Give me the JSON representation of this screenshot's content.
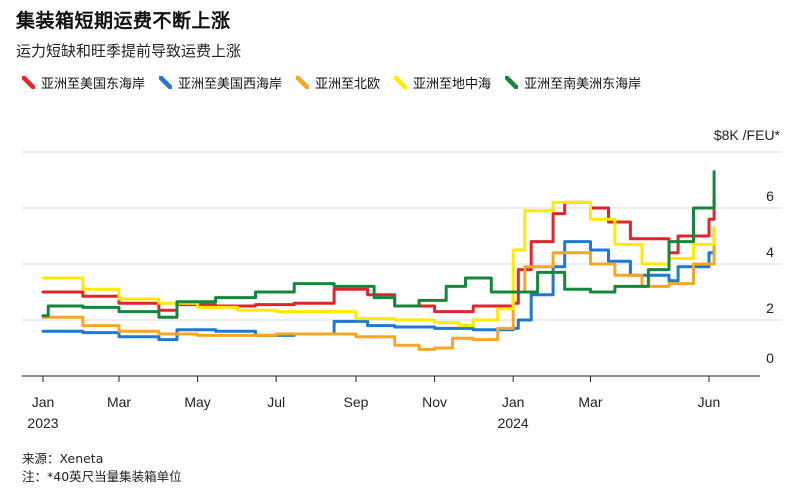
{
  "title": "集装箱短期运费不断上涨",
  "subtitle": "运力短缺和旺季提前导致运费上涨",
  "source": "来源：Xeneta",
  "note": "注：*40英尺当量集装箱单位",
  "chart_data": {
    "type": "line",
    "unit_label": "$8K /FEU*",
    "ylim": [
      0,
      8
    ],
    "y_ticks": [
      0,
      2,
      4,
      6
    ],
    "grid": true,
    "x_start": "2023-01-01",
    "x_end": "2024-06-15",
    "x_ticks": [
      {
        "date": "2023-01-01",
        "label": "Jan",
        "year": "2023"
      },
      {
        "date": "2023-03-01",
        "label": "Mar",
        "year": ""
      },
      {
        "date": "2023-05-01",
        "label": "May",
        "year": ""
      },
      {
        "date": "2023-07-01",
        "label": "Jul",
        "year": ""
      },
      {
        "date": "2023-09-01",
        "label": "Sep",
        "year": ""
      },
      {
        "date": "2023-11-01",
        "label": "Nov",
        "year": ""
      },
      {
        "date": "2024-01-01",
        "label": "Jan",
        "year": "2024"
      },
      {
        "date": "2024-03-01",
        "label": "Mar",
        "year": ""
      },
      {
        "date": "2024-06-01",
        "label": "Jun",
        "year": ""
      }
    ],
    "series": [
      {
        "name": "亚洲至美国东海岸",
        "color": "#e0262b",
        "points": [
          [
            "2023-01-01",
            3.0
          ],
          [
            "2023-02-01",
            2.85
          ],
          [
            "2023-03-01",
            2.6
          ],
          [
            "2023-04-01",
            2.35
          ],
          [
            "2023-04-15",
            2.55
          ],
          [
            "2023-05-15",
            2.5
          ],
          [
            "2023-06-15",
            2.55
          ],
          [
            "2023-07-15",
            2.6
          ],
          [
            "2023-08-15",
            3.1
          ],
          [
            "2023-09-10",
            2.9
          ],
          [
            "2023-10-01",
            2.5
          ],
          [
            "2023-11-01",
            2.3
          ],
          [
            "2023-12-01",
            2.5
          ],
          [
            "2024-01-01",
            2.6
          ],
          [
            "2024-01-05",
            3.8
          ],
          [
            "2024-01-15",
            4.8
          ],
          [
            "2024-02-01",
            5.8
          ],
          [
            "2024-02-10",
            6.2
          ],
          [
            "2024-03-01",
            6.0
          ],
          [
            "2024-03-15",
            5.5
          ],
          [
            "2024-04-01",
            4.9
          ],
          [
            "2024-05-01",
            4.4
          ],
          [
            "2024-05-08",
            5.0
          ],
          [
            "2024-06-01",
            5.6
          ],
          [
            "2024-06-05",
            6.3
          ]
        ]
      },
      {
        "name": "亚洲至美国西海岸",
        "color": "#1f78d1",
        "points": [
          [
            "2023-01-01",
            1.6
          ],
          [
            "2023-02-01",
            1.55
          ],
          [
            "2023-03-01",
            1.4
          ],
          [
            "2023-04-01",
            1.3
          ],
          [
            "2023-04-15",
            1.65
          ],
          [
            "2023-05-15",
            1.6
          ],
          [
            "2023-06-15",
            1.45
          ],
          [
            "2023-07-15",
            1.5
          ],
          [
            "2023-08-15",
            1.95
          ],
          [
            "2023-09-10",
            1.8
          ],
          [
            "2023-10-01",
            1.75
          ],
          [
            "2023-11-01",
            1.7
          ],
          [
            "2023-12-01",
            1.65
          ],
          [
            "2024-01-01",
            1.7
          ],
          [
            "2024-01-05",
            2.0
          ],
          [
            "2024-01-15",
            2.9
          ],
          [
            "2024-02-01",
            3.9
          ],
          [
            "2024-02-10",
            4.8
          ],
          [
            "2024-03-01",
            4.5
          ],
          [
            "2024-03-15",
            4.1
          ],
          [
            "2024-04-01",
            3.6
          ],
          [
            "2024-05-01",
            3.4
          ],
          [
            "2024-05-08",
            3.9
          ],
          [
            "2024-06-01",
            4.4
          ],
          [
            "2024-06-05",
            5.2
          ]
        ]
      },
      {
        "name": "亚洲至北欧",
        "color": "#f5a623",
        "points": [
          [
            "2023-01-01",
            2.1
          ],
          [
            "2023-02-01",
            1.8
          ],
          [
            "2023-03-01",
            1.6
          ],
          [
            "2023-04-01",
            1.5
          ],
          [
            "2023-05-01",
            1.45
          ],
          [
            "2023-06-01",
            1.45
          ],
          [
            "2023-07-01",
            1.5
          ],
          [
            "2023-08-01",
            1.5
          ],
          [
            "2023-09-01",
            1.4
          ],
          [
            "2023-10-01",
            1.1
          ],
          [
            "2023-10-20",
            0.95
          ],
          [
            "2023-11-01",
            1.0
          ],
          [
            "2023-11-15",
            1.35
          ],
          [
            "2023-12-01",
            1.3
          ],
          [
            "2023-12-20",
            1.7
          ],
          [
            "2024-01-01",
            3.0
          ],
          [
            "2024-01-10",
            3.9
          ],
          [
            "2024-02-01",
            4.4
          ],
          [
            "2024-03-01",
            4.0
          ],
          [
            "2024-03-20",
            3.6
          ],
          [
            "2024-04-10",
            3.2
          ],
          [
            "2024-05-01",
            3.3
          ],
          [
            "2024-05-20",
            4.0
          ],
          [
            "2024-06-05",
            4.6
          ]
        ]
      },
      {
        "name": "亚洲至地中海",
        "color": "#ffea00",
        "points": [
          [
            "2023-01-01",
            3.5
          ],
          [
            "2023-02-01",
            3.1
          ],
          [
            "2023-03-01",
            2.75
          ],
          [
            "2023-04-01",
            2.6
          ],
          [
            "2023-05-01",
            2.45
          ],
          [
            "2023-06-01",
            2.35
          ],
          [
            "2023-07-01",
            2.3
          ],
          [
            "2023-08-01",
            2.3
          ],
          [
            "2023-09-01",
            2.05
          ],
          [
            "2023-10-01",
            2.0
          ],
          [
            "2023-11-01",
            1.9
          ],
          [
            "2023-11-20",
            1.8
          ],
          [
            "2023-12-01",
            2.0
          ],
          [
            "2023-12-20",
            2.4
          ],
          [
            "2024-01-01",
            4.5
          ],
          [
            "2024-01-10",
            5.9
          ],
          [
            "2024-02-01",
            6.2
          ],
          [
            "2024-03-01",
            5.6
          ],
          [
            "2024-03-20",
            4.7
          ],
          [
            "2024-04-10",
            4.0
          ],
          [
            "2024-05-01",
            4.2
          ],
          [
            "2024-05-20",
            4.7
          ],
          [
            "2024-06-05",
            5.3
          ]
        ]
      },
      {
        "name": "亚洲至南美洲东海岸",
        "color": "#16873a",
        "points": [
          [
            "2023-01-01",
            2.15
          ],
          [
            "2023-01-05",
            2.5
          ],
          [
            "2023-02-01",
            2.45
          ],
          [
            "2023-03-01",
            2.3
          ],
          [
            "2023-04-01",
            2.1
          ],
          [
            "2023-04-15",
            2.65
          ],
          [
            "2023-05-15",
            2.8
          ],
          [
            "2023-06-15",
            3.0
          ],
          [
            "2023-07-15",
            3.3
          ],
          [
            "2023-08-15",
            3.2
          ],
          [
            "2023-09-15",
            2.8
          ],
          [
            "2023-10-01",
            2.5
          ],
          [
            "2023-10-20",
            2.7
          ],
          [
            "2023-11-10",
            3.2
          ],
          [
            "2023-11-25",
            3.5
          ],
          [
            "2023-12-15",
            3.0
          ],
          [
            "2024-01-05",
            3.0
          ],
          [
            "2024-01-20",
            3.7
          ],
          [
            "2024-02-10",
            3.1
          ],
          [
            "2024-03-01",
            3.0
          ],
          [
            "2024-03-20",
            3.2
          ],
          [
            "2024-04-15",
            3.8
          ],
          [
            "2024-05-01",
            4.8
          ],
          [
            "2024-05-20",
            6.0
          ],
          [
            "2024-06-05",
            7.3
          ]
        ]
      }
    ]
  }
}
